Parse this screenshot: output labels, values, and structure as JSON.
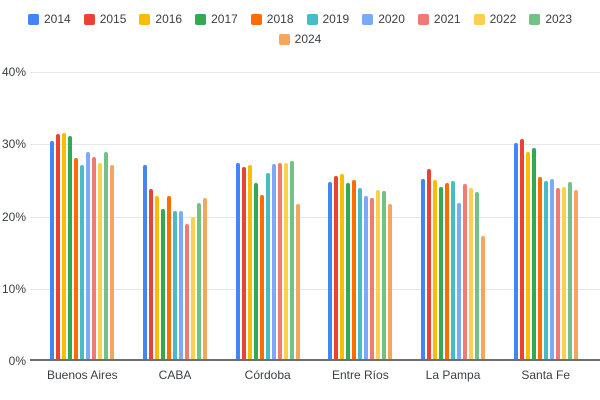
{
  "chart_data": {
    "type": "bar",
    "title": "",
    "xlabel": "",
    "ylabel": "",
    "ylim": [
      0,
      40
    ],
    "yticks": [
      "40%",
      "30%",
      "20%",
      "10%",
      "0%"
    ],
    "grid": true,
    "legend_position": "top",
    "categories": [
      "Buenos Aires",
      "CABA",
      "Córdoba",
      "Entre Ríos",
      "La Pampa",
      "Santa Fe"
    ],
    "series": [
      {
        "name": "2014",
        "color": "#4285F4",
        "values": [
          30.4,
          27.1,
          27.4,
          24.8,
          25.2,
          30.2
        ]
      },
      {
        "name": "2015",
        "color": "#EA4335",
        "values": [
          31.4,
          23.8,
          26.9,
          25.6,
          26.6,
          30.7
        ]
      },
      {
        "name": "2016",
        "color": "#FBBC04",
        "values": [
          31.6,
          22.8,
          27.1,
          25.9,
          25.1,
          28.9
        ]
      },
      {
        "name": "2017",
        "color": "#34A853",
        "values": [
          31.2,
          21.0,
          24.6,
          24.6,
          24.1,
          29.5
        ]
      },
      {
        "name": "2018",
        "color": "#FF6D01",
        "values": [
          28.1,
          22.8,
          23.0,
          25.0,
          24.6,
          25.5
        ]
      },
      {
        "name": "2019",
        "color": "#46BDC6",
        "values": [
          27.1,
          20.8,
          26.0,
          23.9,
          24.9,
          24.9
        ]
      },
      {
        "name": "2020",
        "color": "#7BAAF7",
        "values": [
          28.9,
          20.8,
          27.3,
          22.8,
          21.9,
          25.2
        ]
      },
      {
        "name": "2021",
        "color": "#F07B72",
        "values": [
          28.2,
          19.0,
          27.4,
          22.6,
          24.5,
          23.9
        ]
      },
      {
        "name": "2022",
        "color": "#FCD04F",
        "values": [
          27.4,
          19.9,
          27.4,
          23.7,
          23.9,
          24.1
        ]
      },
      {
        "name": "2023",
        "color": "#71C287",
        "values": [
          29.0,
          21.9,
          27.7,
          23.5,
          23.4,
          24.8
        ]
      },
      {
        "name": "2024",
        "color": "#F5A55C",
        "values": [
          27.2,
          22.6,
          21.7,
          21.7,
          17.3,
          23.7
        ]
      }
    ]
  }
}
